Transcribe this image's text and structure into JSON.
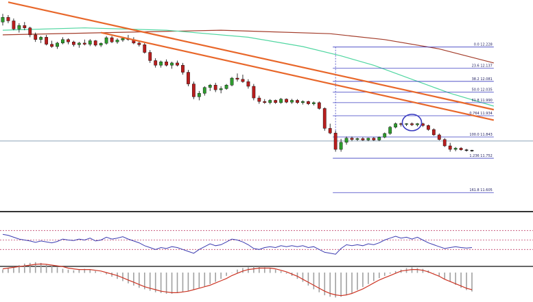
{
  "chart_data": {
    "type": "candlestick",
    "panels": [
      "price",
      "oscillator",
      "histogram"
    ],
    "price_range_approx": [
      11.55,
      12.4
    ],
    "candles": [
      [
        12.335,
        12.37,
        12.32,
        12.355
      ],
      [
        12.355,
        12.365,
        12.33,
        12.34
      ],
      [
        12.34,
        12.35,
        12.3,
        12.305
      ],
      [
        12.305,
        12.33,
        12.29,
        12.32
      ],
      [
        12.32,
        12.335,
        12.3,
        12.31
      ],
      [
        12.31,
        12.315,
        12.27,
        12.28
      ],
      [
        12.28,
        12.29,
        12.25,
        12.26
      ],
      [
        12.26,
        12.275,
        12.245,
        12.27
      ],
      [
        12.27,
        12.28,
        12.235,
        12.24
      ],
      [
        12.24,
        12.255,
        12.225,
        12.23
      ],
      [
        12.23,
        12.25,
        12.22,
        12.245
      ],
      [
        12.245,
        12.27,
        12.24,
        12.26
      ],
      [
        12.26,
        12.265,
        12.24,
        12.25
      ],
      [
        12.25,
        12.255,
        12.23,
        12.238
      ],
      [
        12.238,
        12.25,
        12.225,
        12.245
      ],
      [
        12.245,
        12.26,
        12.235,
        12.24
      ],
      [
        12.24,
        12.262,
        12.232,
        12.255
      ],
      [
        12.255,
        12.258,
        12.23,
        12.236
      ],
      [
        12.236,
        12.248,
        12.228,
        12.244
      ],
      [
        12.244,
        12.275,
        12.238,
        12.268
      ],
      [
        12.268,
        12.275,
        12.245,
        12.25
      ],
      [
        12.25,
        12.265,
        12.242,
        12.258
      ],
      [
        12.258,
        12.272,
        12.25,
        12.265
      ],
      [
        12.265,
        12.28,
        12.255,
        12.26
      ],
      [
        12.26,
        12.27,
        12.24,
        12.245
      ],
      [
        12.245,
        12.255,
        12.23,
        12.238
      ],
      [
        12.238,
        12.245,
        12.2,
        12.205
      ],
      [
        12.205,
        12.215,
        12.16,
        12.17
      ],
      [
        12.17,
        12.18,
        12.14,
        12.15
      ],
      [
        12.15,
        12.17,
        12.14,
        12.165
      ],
      [
        12.165,
        12.175,
        12.145,
        12.15
      ],
      [
        12.15,
        12.165,
        12.135,
        12.16
      ],
      [
        12.16,
        12.17,
        12.145,
        12.15
      ],
      [
        12.15,
        12.16,
        12.11,
        12.12
      ],
      [
        12.12,
        12.13,
        12.06,
        12.07
      ],
      [
        12.07,
        12.08,
        12.005,
        12.015
      ],
      [
        12.015,
        12.04,
        12.0,
        12.03
      ],
      [
        12.03,
        12.06,
        12.02,
        12.055
      ],
      [
        12.055,
        12.07,
        12.04,
        12.065
      ],
      [
        12.065,
        12.075,
        12.035,
        12.045
      ],
      [
        12.045,
        12.06,
        12.03,
        12.05
      ],
      [
        12.05,
        12.07,
        12.045,
        12.065
      ],
      [
        12.065,
        12.1,
        12.06,
        12.095
      ],
      [
        12.095,
        12.115,
        12.08,
        12.09
      ],
      [
        12.09,
        12.11,
        12.075,
        12.08
      ],
      [
        12.08,
        12.09,
        12.05,
        12.06
      ],
      [
        12.06,
        12.07,
        12.0,
        12.01
      ],
      [
        12.01,
        12.02,
        11.985,
        11.995
      ],
      [
        11.995,
        12.005,
        11.985,
        11.99
      ],
      [
        11.99,
        12.005,
        11.983,
        12.0
      ],
      [
        12.0,
        12.003,
        11.985,
        11.99
      ],
      [
        11.99,
        12.01,
        11.985,
        12.005
      ],
      [
        12.005,
        12.008,
        11.988,
        11.992
      ],
      [
        11.992,
        12.006,
        11.985,
        12.0
      ],
      [
        12.0,
        12.005,
        11.985,
        11.99
      ],
      [
        11.99,
        12.0,
        11.982,
        11.995
      ],
      [
        11.995,
        11.998,
        11.98,
        11.985
      ],
      [
        11.985,
        11.995,
        11.978,
        11.99
      ],
      [
        11.99,
        11.995,
        11.96,
        11.965
      ],
      [
        11.965,
        11.97,
        11.87,
        11.88
      ],
      [
        11.88,
        11.9,
        11.855,
        11.86
      ],
      [
        11.86,
        11.87,
        11.78,
        11.79
      ],
      [
        11.79,
        11.835,
        11.78,
        11.82
      ],
      [
        11.82,
        11.845,
        11.81,
        11.838
      ],
      [
        11.838,
        11.845,
        11.825,
        11.832
      ],
      [
        11.832,
        11.84,
        11.826,
        11.836
      ],
      [
        11.836,
        11.842,
        11.826,
        11.83
      ],
      [
        11.83,
        11.84,
        11.825,
        11.838
      ],
      [
        11.838,
        11.842,
        11.826,
        11.83
      ],
      [
        11.83,
        11.845,
        11.825,
        11.842
      ],
      [
        11.842,
        11.862,
        11.838,
        11.858
      ],
      [
        11.858,
        11.89,
        11.852,
        11.885
      ],
      [
        11.885,
        11.905,
        11.88,
        11.9
      ],
      [
        11.9,
        11.904,
        11.888,
        11.897
      ],
      [
        11.897,
        11.902,
        11.89,
        11.9
      ],
      [
        11.9,
        11.905,
        11.89,
        11.895
      ],
      [
        11.895,
        11.903,
        11.888,
        11.9
      ],
      [
        11.9,
        11.904,
        11.886,
        11.892
      ],
      [
        11.892,
        11.896,
        11.87,
        11.875
      ],
      [
        11.875,
        11.88,
        11.848,
        11.852
      ],
      [
        11.852,
        11.858,
        11.828,
        11.832
      ],
      [
        11.832,
        11.838,
        11.8,
        11.805
      ],
      [
        11.805,
        11.818,
        11.78,
        11.79
      ],
      [
        11.79,
        11.8,
        11.782,
        11.795
      ],
      [
        11.795,
        11.8,
        11.784,
        11.788
      ],
      [
        11.788,
        11.792,
        11.78,
        11.786
      ],
      [
        11.786,
        11.788,
        11.78,
        11.784
      ]
    ],
    "moving_averages": [
      {
        "color": "#a33c2a",
        "values": [
          [
            0,
            12.28
          ],
          [
            20,
            12.29
          ],
          [
            40,
            12.3
          ],
          [
            60,
            12.285
          ],
          [
            70,
            12.26
          ],
          [
            80,
            12.22
          ],
          [
            90,
            12.16
          ]
        ]
      },
      {
        "color": "#4fd6a0",
        "values": [
          [
            0,
            12.3
          ],
          [
            15,
            12.31
          ],
          [
            30,
            12.3
          ],
          [
            45,
            12.27
          ],
          [
            55,
            12.23
          ],
          [
            62,
            12.19
          ],
          [
            68,
            12.15
          ],
          [
            75,
            12.09
          ],
          [
            82,
            12.03
          ],
          [
            90,
            11.975
          ]
        ]
      }
    ],
    "trend_lines": [
      {
        "color": "#e8672a",
        "from": [
          1,
          12.42
        ],
        "to": [
          90,
          11.96
        ]
      },
      {
        "color": "#e8672a",
        "from": [
          18,
          12.29
        ],
        "to": [
          90,
          11.915
        ]
      }
    ],
    "fibonacci": {
      "start_index": 61,
      "end_index": 90,
      "levels": [
        {
          "ratio": "0.0",
          "price": "12.228",
          "value": 12.228
        },
        {
          "ratio": "23.6",
          "price": "12.137",
          "value": 12.137
        },
        {
          "ratio": "38.2",
          "price": "12.081",
          "value": 12.081
        },
        {
          "ratio": "50.0",
          "price": "12.035",
          "value": 12.035
        },
        {
          "ratio": "61.8",
          "price": "11.990",
          "value": 11.99
        },
        {
          "ratio": "0.764",
          "price": "11.934",
          "value": 11.934
        },
        {
          "ratio": "100.0",
          "price": "11.843",
          "value": 11.843
        },
        {
          "ratio": "1.236",
          "price": "11.752",
          "value": 11.752
        },
        {
          "ratio": "161.8",
          "price": "11.605",
          "value": 11.605
        }
      ]
    },
    "horizontal_line": 11.826,
    "highlight_circle_index": 75,
    "oscillator": {
      "levels": [
        70,
        50,
        30
      ],
      "values": [
        62,
        60,
        56,
        52,
        50,
        48,
        45,
        48,
        46,
        44,
        47,
        52,
        50,
        49,
        52,
        50,
        54,
        48,
        50,
        56,
        52,
        54,
        57,
        52,
        48,
        44,
        38,
        34,
        30,
        34,
        32,
        36,
        34,
        30,
        26,
        22,
        30,
        36,
        42,
        38,
        40,
        46,
        52,
        50,
        46,
        40,
        32,
        30,
        34,
        36,
        34,
        38,
        36,
        38,
        36,
        38,
        34,
        36,
        30,
        24,
        22,
        20,
        32,
        40,
        38,
        40,
        38,
        42,
        40,
        44,
        50,
        54,
        58,
        54,
        56,
        52,
        56,
        50,
        44,
        40,
        36,
        32,
        34,
        36,
        34,
        33,
        34
      ]
    },
    "histogram": {
      "values": [
        0.4,
        0.6,
        0.8,
        1.0,
        1.2,
        1.3,
        1.4,
        1.3,
        1.1,
        0.9,
        0.7,
        0.5,
        0.4,
        0.3,
        0.4,
        0.5,
        0.4,
        0.2,
        0.0,
        -0.2,
        -0.5,
        -0.8,
        -1.1,
        -1.4,
        -1.7,
        -2.0,
        -2.2,
        -2.4,
        -2.6,
        -2.7,
        -2.8,
        -2.8,
        -2.7,
        -2.6,
        -2.4,
        -2.2,
        -2.0,
        -1.8,
        -1.5,
        -1.2,
        -0.8,
        -0.4,
        0.0,
        0.4,
        0.6,
        0.7,
        0.8,
        0.8,
        0.7,
        0.6,
        0.4,
        0.2,
        -0.1,
        -0.4,
        -0.8,
        -1.2,
        -1.7,
        -2.2,
        -2.6,
        -3.0,
        -3.2,
        -3.3,
        -3.2,
        -3.0,
        -2.7,
        -2.3,
        -1.9,
        -1.5,
        -1.1,
        -0.7,
        -0.4,
        -0.1,
        0.2,
        0.4,
        0.6,
        0.7,
        0.6,
        0.5,
        0.3,
        0.0,
        -0.4,
        -0.8,
        -1.2,
        -1.6,
        -2.0,
        -2.3,
        -2.5
      ],
      "signal": [
        0.5,
        0.6,
        0.7,
        0.8,
        0.9,
        1.0,
        1.1,
        1.15,
        1.1,
        1.0,
        0.9,
        0.8,
        0.6,
        0.5,
        0.4,
        0.4,
        0.4,
        0.3,
        0.2,
        0.0,
        -0.2,
        -0.4,
        -0.7,
        -1.0,
        -1.3,
        -1.6,
        -1.9,
        -2.1,
        -2.3,
        -2.5,
        -2.6,
        -2.7,
        -2.7,
        -2.6,
        -2.5,
        -2.3,
        -2.1,
        -1.9,
        -1.7,
        -1.4,
        -1.1,
        -0.8,
        -0.4,
        -0.1,
        0.2,
        0.4,
        0.5,
        0.6,
        0.6,
        0.6,
        0.5,
        0.3,
        0.1,
        -0.2,
        -0.5,
        -0.9,
        -1.3,
        -1.7,
        -2.1,
        -2.5,
        -2.8,
        -3.0,
        -3.1,
        -3.0,
        -2.8,
        -2.5,
        -2.2,
        -1.8,
        -1.4,
        -1.0,
        -0.7,
        -0.4,
        -0.1,
        0.2,
        0.3,
        0.4,
        0.4,
        0.3,
        0.1,
        -0.2,
        -0.5,
        -0.9,
        -1.2,
        -1.5,
        -1.8,
        -2.1,
        -2.3
      ]
    }
  },
  "colors": {
    "bull": "#2e9b2e",
    "bear": "#b81e1e",
    "doji": "#000000",
    "fib_line": "#3a3cc0",
    "fib_text": "#1a1a5e",
    "hline": "#8aa2b6",
    "separator": "#333333",
    "osc_line": "#3a3ab0",
    "osc_level": "#c0406a",
    "hist_bar": "#a0a0a0",
    "hist_signal": "#cc3322",
    "circle": "#3a3cc0"
  }
}
